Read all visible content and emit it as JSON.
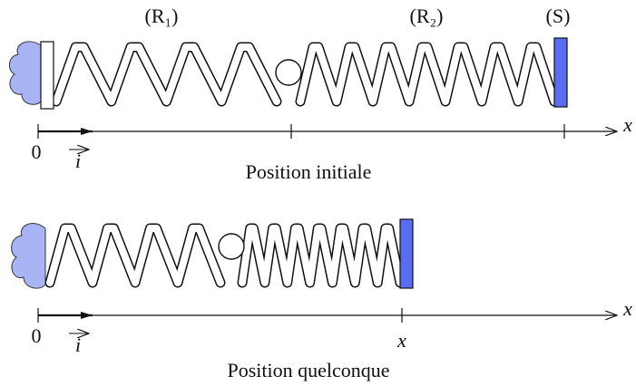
{
  "panels": [
    {
      "spring_1_label": "(R₁)",
      "spring_2_label": "(R₂)",
      "block_label": "(S)",
      "origin_label": "0",
      "unit_vector_label": "i",
      "axis_label": "x",
      "caption": "Position initiale"
    },
    {
      "origin_label": "0",
      "unit_vector_label": "i",
      "axis_label": "x",
      "position_label": "x",
      "caption": "Position quelconque"
    }
  ]
}
